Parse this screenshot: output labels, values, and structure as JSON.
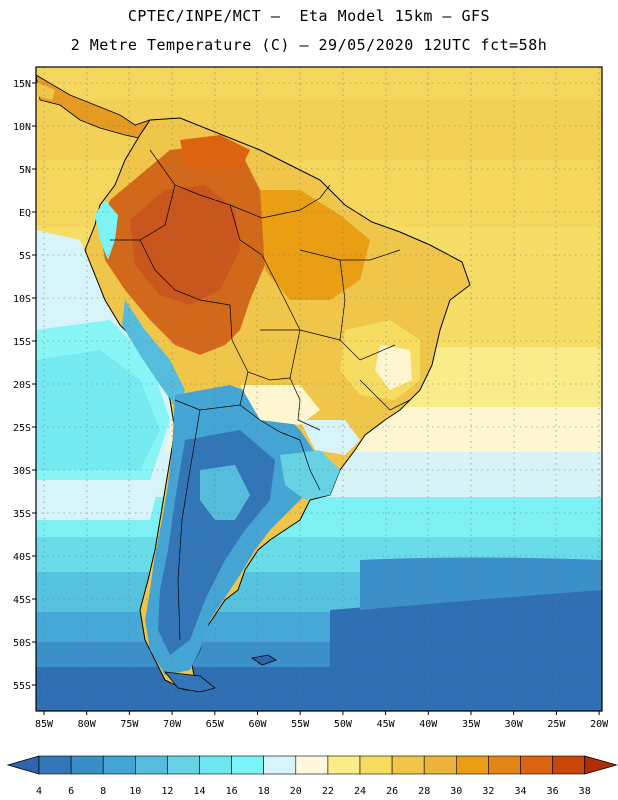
{
  "header": {
    "line1": "CPTEC/INPE/MCT –  Eta Model 15km – GFS",
    "line2": "2 Metre Temperature (C) – 29/05/2020 12UTC fct=58h"
  },
  "map": {
    "lat_labels": [
      "15N",
      "10N",
      "5N",
      "EQ",
      "5S",
      "10S",
      "15S",
      "20S",
      "25S",
      "30S",
      "35S",
      "40S",
      "45S",
      "50S",
      "55S"
    ],
    "lon_labels": [
      "85W",
      "80W",
      "75W",
      "70W",
      "65W",
      "60W",
      "55W",
      "50W",
      "45W",
      "40W",
      "35W",
      "30W",
      "25W",
      "20W"
    ]
  },
  "colorbar": {
    "labels": [
      "4",
      "6",
      "8",
      "10",
      "12",
      "14",
      "16",
      "18",
      "20",
      "22",
      "24",
      "26",
      "28",
      "30",
      "32",
      "34",
      "36",
      "38"
    ],
    "colors": [
      "#2e66ad",
      "#3376b8",
      "#3a8ec8",
      "#44a4d4",
      "#55bcdc",
      "#66d2e4",
      "#6ee6ee",
      "#7af4f6",
      "#d6f4fa",
      "#fdf8de",
      "#fbee8a",
      "#f7dc62",
      "#f0c64a",
      "#ecb43a",
      "#e99e14",
      "#e58416",
      "#dc6410",
      "#c84408",
      "#b42c04"
    ]
  },
  "icons": {
    "colorbar_left_arrow": "triangle-left-icon",
    "colorbar_right_arrow": "triangle-right-icon"
  }
}
